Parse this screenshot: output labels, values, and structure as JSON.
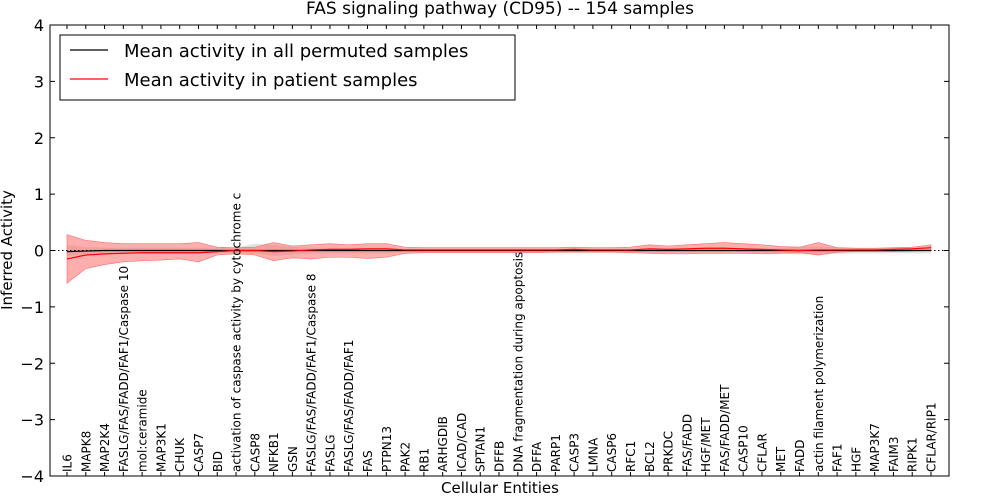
{
  "chart_data": {
    "type": "line",
    "title": "FAS signaling pathway (CD95) -- 154 samples",
    "xlabel": "Cellular Entities",
    "ylabel": "Inferred Activity",
    "ylim": [
      -4,
      4
    ],
    "yticks": [
      -4,
      -3,
      -2,
      -1,
      0,
      1,
      2,
      3,
      4
    ],
    "ytick_labels": [
      "−4",
      "−3",
      "−2",
      "−1",
      "0",
      "1",
      "2",
      "3",
      "4"
    ],
    "legend_position": "top-left",
    "categories": [
      "IL6",
      "MAPK8",
      "MAP2K4",
      "FASLG/FAS/FADD/FAF1/Caspase 10",
      "mol:ceramide",
      "MAP3K1",
      "CHUK",
      "CASP7",
      "BID",
      "activation of caspase activity by cytochrome c",
      "CASP8",
      "NFKB1",
      "GSN",
      "FASLG/FAS/FADD/FAF1/Caspase 8",
      "FASLG",
      "FASLG/FAS/FADD/FAF1",
      "FAS",
      "PTPN13",
      "PAK2",
      "RB1",
      "ARHGDIB",
      "ICAD/CAD",
      "SPTAN1",
      "DFFB",
      "DNA fragmentation during apoptosis",
      "DFFA",
      "PARP1",
      "CASP3",
      "LMNA",
      "CASP6",
      "RFC1",
      "BCL2",
      "PRKDC",
      "FAS/FADD",
      "HGF/MET",
      "FAS/FADD/MET",
      "CASP10",
      "CFLAR",
      "MET",
      "FADD",
      "actin filament polymerization",
      "FAF1",
      "HGF",
      "MAP3K7",
      "FAIM3",
      "RIPK1",
      "CFLAR/RIP1"
    ],
    "series": [
      {
        "name": "Mean activity in all permuted samples",
        "color": "#000000",
        "values": [
          -0.02,
          -0.01,
          0,
          0,
          0,
          0,
          0,
          0,
          0,
          0,
          0,
          0,
          0,
          0,
          0,
          0,
          0,
          0,
          0,
          0,
          0,
          0,
          0,
          0,
          0,
          0,
          0,
          0,
          0,
          0,
          0,
          0,
          0,
          0,
          0,
          0,
          0,
          0,
          0,
          0,
          0,
          0,
          0,
          0,
          0,
          0,
          0
        ],
        "band_lower": [
          -0.1,
          -0.06,
          -0.05,
          -0.05,
          -0.05,
          -0.05,
          -0.05,
          -0.05,
          -0.05,
          -0.05,
          -0.05,
          -0.1,
          -0.07,
          -0.05,
          -0.05,
          -0.05,
          -0.05,
          -0.05,
          -0.03,
          -0.03,
          -0.03,
          -0.03,
          -0.03,
          -0.03,
          -0.03,
          -0.03,
          -0.03,
          -0.03,
          -0.03,
          -0.03,
          -0.03,
          -0.03,
          -0.03,
          -0.03,
          -0.03,
          -0.03,
          -0.03,
          -0.03,
          -0.05,
          -0.07,
          -0.07,
          -0.06,
          -0.05,
          -0.05,
          -0.05,
          -0.05,
          -0.05
        ],
        "band_upper": [
          0.1,
          0.06,
          0.05,
          0.05,
          0.05,
          0.05,
          0.05,
          0.05,
          0.05,
          0.05,
          0.12,
          0.1,
          0.07,
          0.05,
          0.05,
          0.05,
          0.05,
          0.05,
          0.03,
          0.03,
          0.03,
          0.03,
          0.03,
          0.03,
          0.03,
          0.03,
          0.03,
          0.03,
          0.03,
          0.03,
          0.03,
          0.03,
          0.03,
          0.03,
          0.03,
          0.03,
          0.03,
          0.03,
          0.05,
          0.07,
          0.07,
          0.06,
          0.05,
          0.05,
          0.05,
          0.05,
          0.05
        ]
      },
      {
        "name": "Mean activity in patient samples",
        "color": "#ff0000",
        "values": [
          -0.15,
          -0.08,
          -0.06,
          -0.05,
          -0.04,
          -0.04,
          -0.04,
          -0.04,
          -0.02,
          0,
          0,
          -0.02,
          -0.01,
          0.01,
          0.02,
          0.02,
          0.03,
          0.03,
          0.01,
          0.01,
          0.01,
          0.01,
          0.01,
          0.01,
          0.01,
          0.01,
          0.01,
          0.02,
          0.01,
          0.01,
          0.01,
          0.03,
          0.02,
          0.03,
          0.04,
          0.04,
          0.03,
          0.02,
          0.01,
          0,
          0.01,
          0.01,
          0.01,
          0.01,
          0.02,
          0.03,
          0.05
        ],
        "band_lower": [
          -0.58,
          -0.32,
          -0.25,
          -0.2,
          -0.18,
          -0.17,
          -0.15,
          -0.2,
          -0.08,
          -0.06,
          -0.08,
          -0.18,
          -0.13,
          -0.15,
          -0.12,
          -0.12,
          -0.14,
          -0.12,
          -0.05,
          -0.04,
          -0.04,
          -0.04,
          -0.04,
          -0.04,
          -0.04,
          -0.04,
          -0.03,
          -0.03,
          -0.03,
          -0.03,
          -0.04,
          -0.05,
          -0.06,
          -0.06,
          -0.05,
          -0.05,
          -0.05,
          -0.06,
          -0.05,
          -0.04,
          -0.08,
          -0.03,
          -0.02,
          -0.02,
          -0.02,
          -0.01,
          0
        ],
        "band_upper": [
          0.28,
          0.18,
          0.14,
          0.12,
          0.12,
          0.12,
          0.12,
          0.14,
          0.06,
          0.05,
          0.06,
          0.14,
          0.08,
          0.1,
          0.12,
          0.1,
          0.12,
          0.12,
          0.06,
          0.05,
          0.05,
          0.05,
          0.05,
          0.05,
          0.05,
          0.05,
          0.05,
          0.06,
          0.05,
          0.05,
          0.06,
          0.1,
          0.08,
          0.1,
          0.12,
          0.14,
          0.12,
          0.1,
          0.07,
          0.06,
          0.14,
          0.05,
          0.04,
          0.04,
          0.05,
          0.06,
          0.1
        ]
      }
    ],
    "permuted_band_color": "#c8c8c8",
    "patient_band_color": "#ff6b6b"
  }
}
